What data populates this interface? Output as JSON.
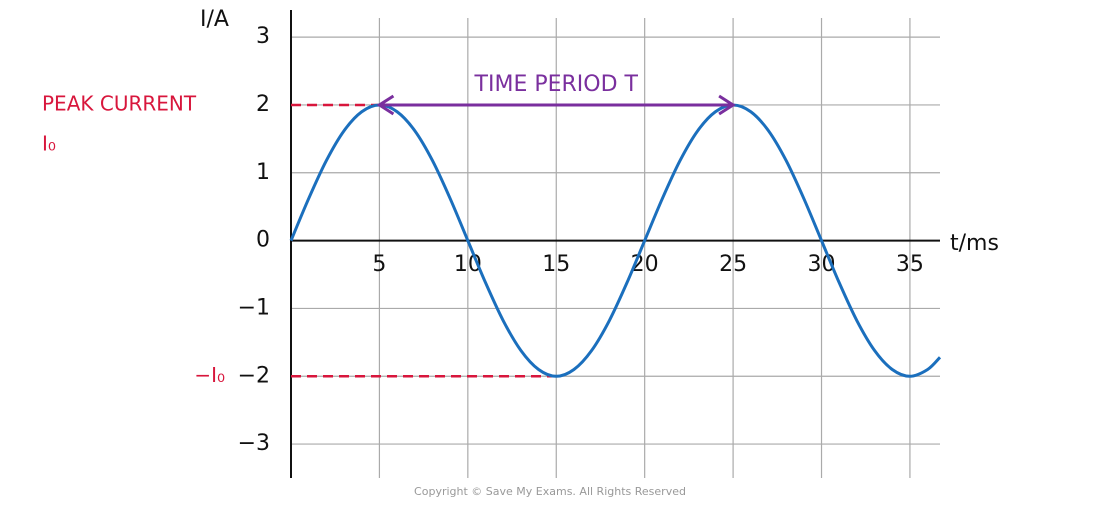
{
  "chart_data": {
    "type": "line",
    "x_label": "t/ms",
    "y_label": "I/A",
    "x": [
      0,
      1,
      2,
      3,
      4,
      5,
      6,
      7,
      8,
      9,
      10,
      11,
      12,
      13,
      14,
      15,
      16,
      17,
      18,
      19,
      20,
      21,
      22,
      23,
      24,
      25,
      26,
      27,
      28,
      29,
      30,
      31,
      32,
      33,
      34,
      35,
      36,
      36.7
    ],
    "values": [
      0,
      0.62,
      1.18,
      1.62,
      1.9,
      2,
      1.9,
      1.62,
      1.18,
      0.62,
      0,
      -0.62,
      -1.18,
      -1.62,
      -1.9,
      -2,
      -1.9,
      -1.62,
      -1.18,
      -0.62,
      0,
      0.62,
      1.18,
      1.62,
      1.9,
      2,
      1.9,
      1.62,
      1.18,
      0.62,
      0,
      -0.62,
      -1.18,
      -1.62,
      -1.9,
      -2,
      -1.9,
      -1.72
    ],
    "color": "#1b6fbd",
    "xlim": [
      0,
      36.7
    ],
    "xticks": [
      5,
      10,
      15,
      20,
      25,
      30,
      35
    ],
    "ylim": [
      -3.5,
      3.4
    ],
    "yticks": [
      {
        "value": -3,
        "label": "−3"
      },
      {
        "value": -2,
        "label": "−2"
      },
      {
        "value": -1,
        "label": "−1"
      },
      0,
      1,
      2,
      3
    ],
    "grid": true,
    "reference_lines": [
      {
        "y": 2,
        "x_end": 5,
        "label": "PEAK CURRENT",
        "symbol": "I₀",
        "color": "#d8163c"
      },
      {
        "y": -2,
        "x_end": 15,
        "symbol": "−I₀",
        "color": "#d8163c"
      }
    ],
    "period_arrow": {
      "x_start": 5,
      "x_end": 25,
      "y": 2,
      "label": "TIME PERIOD T",
      "color": "#7a2f9e"
    },
    "footer": "Copyright © Save My Exams. All Rights Reserved"
  }
}
